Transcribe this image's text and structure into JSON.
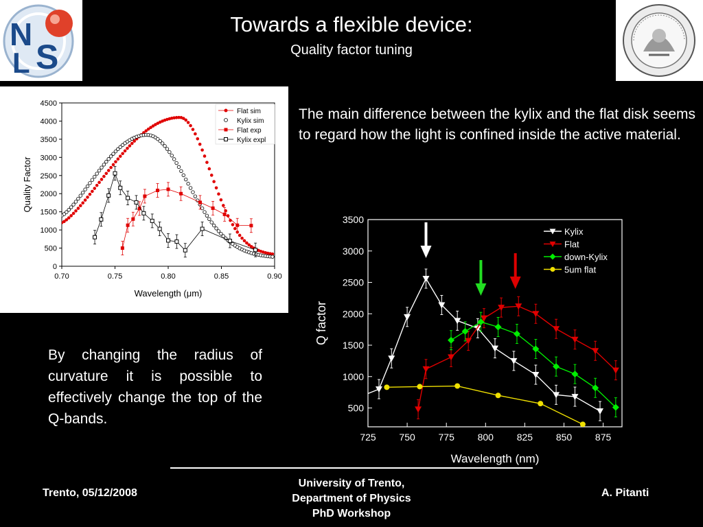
{
  "slide": {
    "title": "Towards a flexible device:",
    "subtitle": "Quality factor tuning",
    "paragraph1": "The main difference between the kylix and the flat disk seems to regard how the light is confined inside the active material.",
    "paragraph2": "By changing the radius of curvature it is possible to effectively change the top of the Q-bands."
  },
  "footer": {
    "left": "Trento, 05/12/2008",
    "center_line1": "University of Trento,",
    "center_line2": "Department of Physics",
    "center_line3": "PhD Workshop",
    "right": "A. Pitanti"
  },
  "logos": {
    "left_text": "NLS",
    "right_seal_text": "UNIVERSITAS STUDIORUM TRIDENTINA ATHESINA"
  },
  "chart_data": [
    {
      "type": "scatter",
      "xlabel": "Wavelength (μm)",
      "ylabel": "Quality Factor",
      "xlim": [
        0.7,
        0.9
      ],
      "ylim": [
        0,
        4500
      ],
      "xticks": [
        "0.70",
        "0.75",
        "0.80",
        "0.85",
        "0.90"
      ],
      "yticks": [
        "0",
        "500",
        "1000",
        "1500",
        "2000",
        "2500",
        "3000",
        "3500",
        "4000",
        "4500"
      ],
      "legend_position": "top-right",
      "series": [
        {
          "name": "Flat sim",
          "color": "#e00000",
          "marker": "dot",
          "peak_x": 0.811,
          "peak_y": 4100,
          "x_start": 0.7,
          "y_start": 1200,
          "x_end": 0.9,
          "y_end": 300
        },
        {
          "name": "Kylix sim",
          "color": "#ffffff",
          "marker": "open-dot",
          "peak_x": 0.78,
          "peak_y": 3620,
          "x_start": 0.7,
          "y_start": 1400,
          "x_end": 0.9,
          "y_end": 230
        },
        {
          "name": "Flat exp",
          "color": "#e00000",
          "marker": "square",
          "x": [
            0.757,
            0.762,
            0.767,
            0.773,
            0.778,
            0.79,
            0.8,
            0.812,
            0.83,
            0.842,
            0.853,
            0.865,
            0.878
          ],
          "y": [
            500,
            1130,
            1300,
            1590,
            1930,
            2090,
            2120,
            2000,
            1760,
            1600,
            1430,
            1130,
            1120
          ]
        },
        {
          "name": "Kylix expl",
          "color": "#000000",
          "marker": "open-square",
          "x": [
            0.731,
            0.737,
            0.744,
            0.75,
            0.755,
            0.762,
            0.77,
            0.777,
            0.785,
            0.792,
            0.8,
            0.808,
            0.816,
            0.832,
            0.858,
            0.882
          ],
          "y": [
            800,
            1290,
            1950,
            2560,
            2160,
            1880,
            1760,
            1460,
            1250,
            1030,
            710,
            680,
            440,
            1030,
            700,
            450
          ]
        }
      ]
    },
    {
      "type": "line",
      "xlabel": "Wavelength (nm)",
      "ylabel": "Q factor",
      "xlim": [
        725,
        887
      ],
      "ylim": [
        200,
        3500
      ],
      "xticks": [
        "725",
        "750",
        "775",
        "800",
        "825",
        "850",
        "875"
      ],
      "yticks": [
        "500",
        "1000",
        "1500",
        "2000",
        "2500",
        "3000",
        "3500"
      ],
      "legend_position": "top-right",
      "arrows": [
        {
          "x": 762,
          "color": "#ffffff"
        },
        {
          "x": 797,
          "color": "#22dd22"
        },
        {
          "x": 819,
          "color": "#dd0000"
        }
      ],
      "series": [
        {
          "name": "Kylix",
          "color": "#ffffff",
          "marker": "down-triangle",
          "x": [
            732,
            740,
            750,
            762,
            772,
            782,
            795,
            806,
            818,
            832,
            845,
            857,
            873
          ],
          "y": [
            800,
            1290,
            1950,
            2560,
            2140,
            1890,
            1770,
            1450,
            1250,
            1030,
            710,
            680,
            450
          ]
        },
        {
          "name": "Flat",
          "color": "#e00000",
          "marker": "down-triangle",
          "x": [
            757,
            762,
            778,
            789,
            799,
            810,
            821,
            832,
            845,
            857,
            870,
            883
          ],
          "y": [
            480,
            1120,
            1310,
            1570,
            1930,
            2100,
            2120,
            2000,
            1760,
            1590,
            1410,
            1100
          ]
        },
        {
          "name": "down-Kylix",
          "color": "#00ee00",
          "marker": "diamond",
          "x": [
            778,
            787,
            797,
            808,
            820,
            832,
            845,
            857,
            870,
            883
          ],
          "y": [
            1580,
            1720,
            1870,
            1790,
            1680,
            1440,
            1160,
            1040,
            820,
            510
          ]
        },
        {
          "name": "5um flat",
          "color": "#f0e000",
          "marker": "circle",
          "x": [
            737,
            758,
            782,
            808,
            835,
            862
          ],
          "y": [
            830,
            840,
            850,
            700,
            570,
            240
          ]
        }
      ]
    }
  ]
}
